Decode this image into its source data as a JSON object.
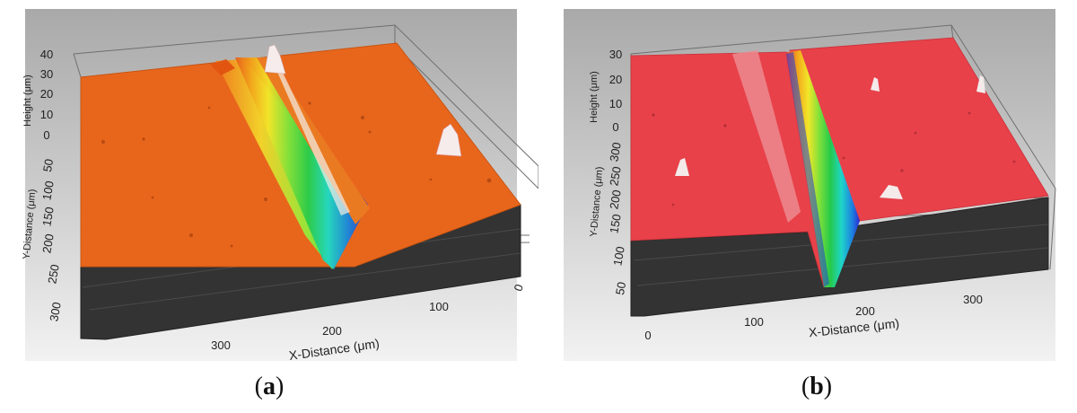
{
  "panels": [
    {
      "id": "a",
      "caption_open": "(",
      "caption_letter": "a",
      "caption_close": ")",
      "surface_color": "#e8661c",
      "chart_data": {
        "type": "surface3d",
        "height_axis": {
          "label": "Height (μm)",
          "ticks": [
            40,
            30,
            20,
            10,
            0
          ]
        },
        "y_axis": {
          "label": "Y-Distance (μm)",
          "ticks": [
            50,
            100,
            150,
            200,
            250,
            300
          ]
        },
        "x_axis": {
          "label": "X-Distance (μm)",
          "ticks": [
            300,
            200,
            100,
            0
          ]
        }
      }
    },
    {
      "id": "b",
      "caption_open": "(",
      "caption_letter": "b",
      "caption_close": ")",
      "surface_color": "#e8414a",
      "chart_data": {
        "type": "surface3d",
        "height_axis": {
          "label": "Height (μm)",
          "ticks": [
            30,
            20,
            10,
            0
          ]
        },
        "y_axis": {
          "label": "Y-Distance (μm)",
          "ticks": [
            300,
            250,
            200,
            150,
            100,
            50
          ]
        },
        "x_axis": {
          "label": "X-Distance (μm)",
          "ticks": [
            0,
            100,
            200,
            300
          ]
        }
      }
    }
  ]
}
